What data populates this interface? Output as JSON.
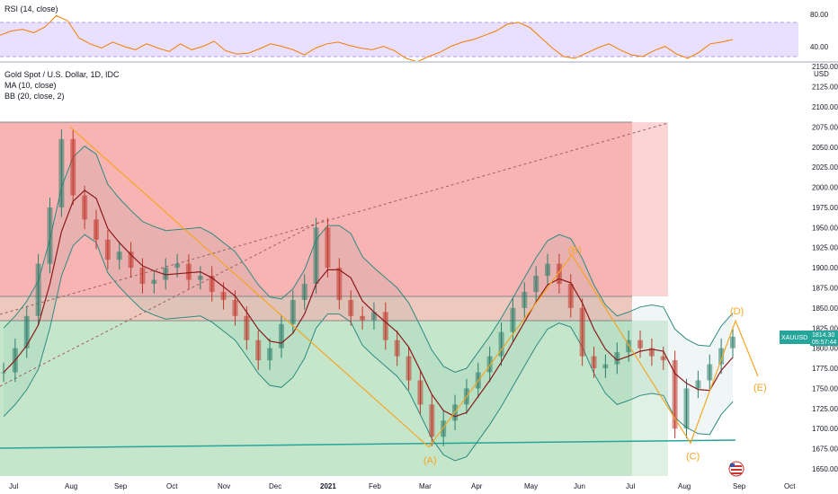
{
  "rsi": {
    "label": "RSI (14, close)",
    "levels": [
      "80.00",
      "40.00"
    ]
  },
  "main": {
    "title": "Gold Spot / U.S. Dollar, 1D, IDC",
    "ma_label": "MA (10, close)",
    "bb_label": "BB (20, close, 2)"
  },
  "price_badge": {
    "symbol": "XAUUSD",
    "price": "1814.30",
    "timer": "05:57:44"
  },
  "wave_labels": [
    "(A)",
    "(B)",
    "(C)",
    "(D)",
    "(E)"
  ],
  "colors": {
    "red_zone": "#f7a6a6",
    "green_zone": "#bfe3c5",
    "price": "#26a69a",
    "wave": "#f5a623",
    "ma": "#8b1a1a",
    "bb": "#2e8b82",
    "rsi": "#f57c00"
  },
  "chart_data": [
    {
      "type": "line",
      "title": "RSI (14, close)",
      "ylim": [
        30,
        90
      ],
      "yticks": [
        80,
        40
      ],
      "values": [
        65,
        70,
        72,
        68,
        75,
        88,
        82,
        62,
        55,
        50,
        57,
        52,
        48,
        55,
        50,
        46,
        55,
        48,
        52,
        58,
        47,
        43,
        44,
        49,
        55,
        52,
        48,
        42,
        50,
        55,
        57,
        53,
        50,
        48,
        52,
        47,
        38,
        34,
        40,
        45,
        52,
        57,
        60,
        65,
        70,
        78,
        80,
        74,
        62,
        50,
        40,
        38,
        44,
        50,
        55,
        48,
        42,
        40,
        47,
        52,
        43,
        38,
        45,
        55,
        57,
        60
      ]
    },
    {
      "type": "line",
      "title": "Gold Spot / U.S. Dollar, 1D, IDC",
      "ylim": [
        1640,
        2155
      ],
      "yticks": [
        2150,
        2125,
        2100,
        2075,
        2050,
        2025,
        2000,
        1975,
        1950,
        1925,
        1900,
        1875,
        1850,
        1825,
        1800,
        1775,
        1750,
        1725,
        1700,
        1675,
        1650
      ],
      "ylabel": "USD",
      "xlabel_ticks": [
        "Jul",
        "Aug",
        "Sep",
        "Oct",
        "Nov",
        "Dec",
        "2021",
        "Feb",
        "Mar",
        "Apr",
        "May",
        "Jun",
        "Jul",
        "Aug",
        "Sep",
        "Oct"
      ],
      "series": [
        {
          "name": "close",
          "values": [
            1770,
            1800,
            1840,
            1905,
            1975,
            2060,
            1990,
            1960,
            1935,
            1910,
            1920,
            1900,
            1880,
            1885,
            1900,
            1905,
            1885,
            1890,
            1870,
            1860,
            1840,
            1810,
            1785,
            1800,
            1830,
            1860,
            1880,
            1950,
            1900,
            1860,
            1840,
            1835,
            1845,
            1810,
            1790,
            1760,
            1730,
            1690,
            1710,
            1730,
            1750,
            1770,
            1790,
            1820,
            1850,
            1870,
            1890,
            1905,
            1880,
            1850,
            1790,
            1775,
            1780,
            1795,
            1810,
            1800,
            1790,
            1785,
            1700,
            1750,
            1760,
            1780,
            1800,
            1814.3
          ]
        }
      ],
      "wave_points": [
        {
          "label": "",
          "x": "Aug",
          "y": 2075
        },
        {
          "label": "(A)",
          "x": "Mar",
          "y": 1677
        },
        {
          "label": "(B)",
          "x": "Jun",
          "y": 1916
        },
        {
          "label": "(C)",
          "x": "Aug",
          "y": 1682
        },
        {
          "label": "(D)",
          "x": "Sep",
          "y": 1834
        },
        {
          "label": "(E)",
          "x": "Sep",
          "y": 1765
        }
      ],
      "zones": [
        {
          "name": "red",
          "from": 1864,
          "to": 2080
        },
        {
          "name": "red-band",
          "from": 1834,
          "to": 1864
        },
        {
          "name": "green",
          "from": 1640,
          "to": 1834
        }
      ],
      "last_price": 1814.3
    }
  ]
}
